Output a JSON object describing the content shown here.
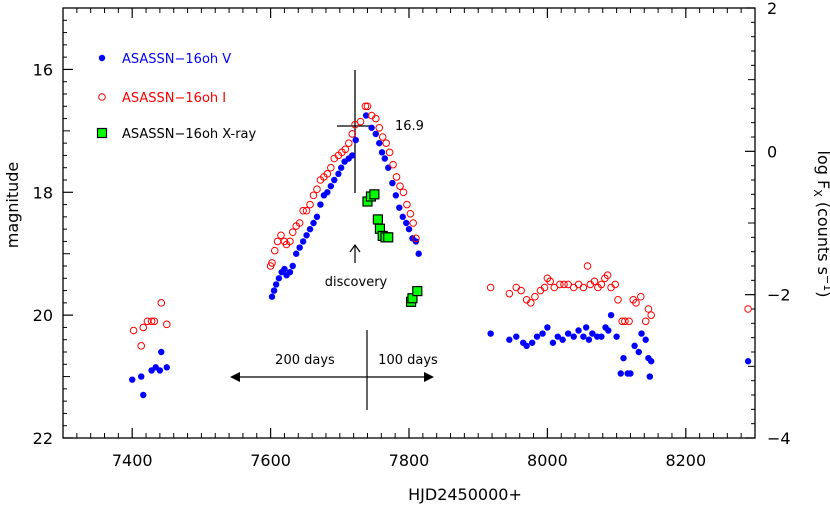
{
  "chart_data": {
    "type": "scatter",
    "xlabel": "HJD2450000+",
    "ylabel_left": "magnitude",
    "ylabel_right": "log F",
    "ylabel_right_sub": "X",
    "ylabel_right_units_pre": " (counts s",
    "ylabel_right_units_sup": "−1",
    "ylabel_right_units_post": ")",
    "xlim": [
      7300,
      8300
    ],
    "ylim_left": [
      22,
      15
    ],
    "ylim_right": [
      -4,
      2
    ],
    "x_ticks": [
      7400,
      7600,
      7800,
      8000,
      8200
    ],
    "y_ticks_left": [
      16,
      18,
      20,
      22
    ],
    "y_ticks_right": [
      2,
      0,
      -2,
      -4
    ],
    "x_tick_labels": [
      "7400",
      "7600",
      "7800",
      "8000",
      "8200"
    ],
    "y_tick_labels_left": [
      "16",
      "18",
      "20",
      "22"
    ],
    "y_tick_labels_right": [
      "2",
      "0",
      "−2",
      "−4"
    ],
    "legend_position": "top-left",
    "series": [
      {
        "name": "ASASSN−16oh V",
        "marker": "filled-circle",
        "color": "#0000ff",
        "axis": "left",
        "points": [
          [
            7400,
            21.05
          ],
          [
            7413,
            21.0
          ],
          [
            7416,
            21.3
          ],
          [
            7428,
            20.9
          ],
          [
            7434,
            20.85
          ],
          [
            7440,
            20.9
          ],
          [
            7442,
            20.6
          ],
          [
            7450,
            20.85
          ],
          [
            7602,
            19.7
          ],
          [
            7605,
            19.6
          ],
          [
            7608,
            19.5
          ],
          [
            7612,
            19.4
          ],
          [
            7616,
            19.3
          ],
          [
            7620,
            19.25
          ],
          [
            7623,
            19.35
          ],
          [
            7628,
            19.3
          ],
          [
            7632,
            19.2
          ],
          [
            7637,
            19.0
          ],
          [
            7642,
            18.9
          ],
          [
            7647,
            18.8
          ],
          [
            7652,
            18.7
          ],
          [
            7657,
            18.6
          ],
          [
            7662,
            18.5
          ],
          [
            7667,
            18.4
          ],
          [
            7672,
            18.2
          ],
          [
            7677,
            18.05
          ],
          [
            7682,
            18.0
          ],
          [
            7687,
            17.9
          ],
          [
            7692,
            17.8
          ],
          [
            7698,
            17.7
          ],
          [
            7702,
            17.6
          ],
          [
            7707,
            17.5
          ],
          [
            7713,
            17.45
          ],
          [
            7718,
            17.4
          ],
          [
            7723,
            17.15
          ],
          [
            7738,
            16.75
          ],
          [
            7746,
            16.95
          ],
          [
            7752,
            17.05
          ],
          [
            7757,
            17.2
          ],
          [
            7761,
            17.35
          ],
          [
            7765,
            17.45
          ],
          [
            7770,
            17.6
          ],
          [
            7776,
            17.85
          ],
          [
            7781,
            18.05
          ],
          [
            7786,
            18.25
          ],
          [
            7791,
            18.4
          ],
          [
            7796,
            18.5
          ],
          [
            7800,
            18.6
          ],
          [
            7805,
            18.75
          ],
          [
            7810,
            18.8
          ],
          [
            7814,
            19.0
          ],
          [
            7918,
            20.3
          ],
          [
            7945,
            20.4
          ],
          [
            7955,
            20.35
          ],
          [
            7965,
            20.45
          ],
          [
            7970,
            20.5
          ],
          [
            7978,
            20.45
          ],
          [
            7985,
            20.35
          ],
          [
            7993,
            20.3
          ],
          [
            8000,
            20.2
          ],
          [
            8008,
            20.45
          ],
          [
            8015,
            20.35
          ],
          [
            8022,
            20.4
          ],
          [
            8030,
            20.3
          ],
          [
            8038,
            20.35
          ],
          [
            8045,
            20.25
          ],
          [
            8052,
            20.35
          ],
          [
            8056,
            20.2
          ],
          [
            8060,
            20.4
          ],
          [
            8065,
            20.3
          ],
          [
            8072,
            20.35
          ],
          [
            8078,
            20.35
          ],
          [
            8084,
            20.2
          ],
          [
            8088,
            20.25
          ],
          [
            8092,
            20.0
          ],
          [
            8100,
            20.35
          ],
          [
            8106,
            20.95
          ],
          [
            8110,
            20.7
          ],
          [
            8116,
            20.95
          ],
          [
            8120,
            20.95
          ],
          [
            8126,
            20.5
          ],
          [
            8132,
            20.6
          ],
          [
            8136,
            20.3
          ],
          [
            8142,
            20.4
          ],
          [
            8146,
            20.7
          ],
          [
            8150,
            20.75
          ],
          [
            8148,
            21.0
          ],
          [
            8290,
            20.75
          ]
        ]
      },
      {
        "name": "ASASSN−16oh I",
        "marker": "open-circle",
        "color": "#ff0000",
        "axis": "left",
        "points": [
          [
            7402,
            20.25
          ],
          [
            7413,
            20.5
          ],
          [
            7416,
            20.2
          ],
          [
            7422,
            20.1
          ],
          [
            7428,
            20.1
          ],
          [
            7432,
            20.1
          ],
          [
            7442,
            19.8
          ],
          [
            7450,
            20.15
          ],
          [
            7600,
            19.2
          ],
          [
            7602,
            19.15
          ],
          [
            7606,
            18.95
          ],
          [
            7610,
            18.8
          ],
          [
            7615,
            18.7
          ],
          [
            7620,
            18.8
          ],
          [
            7623,
            18.85
          ],
          [
            7628,
            18.8
          ],
          [
            7632,
            18.65
          ],
          [
            7637,
            18.55
          ],
          [
            7642,
            18.5
          ],
          [
            7647,
            18.3
          ],
          [
            7652,
            18.3
          ],
          [
            7657,
            18.2
          ],
          [
            7662,
            18.05
          ],
          [
            7667,
            17.95
          ],
          [
            7672,
            17.8
          ],
          [
            7677,
            17.75
          ],
          [
            7682,
            17.7
          ],
          [
            7687,
            17.6
          ],
          [
            7692,
            17.45
          ],
          [
            7698,
            17.4
          ],
          [
            7703,
            17.35
          ],
          [
            7708,
            17.3
          ],
          [
            7713,
            17.2
          ],
          [
            7718,
            17.05
          ],
          [
            7722,
            16.9
          ],
          [
            7730,
            16.85
          ],
          [
            7737,
            16.6
          ],
          [
            7740,
            16.6
          ],
          [
            7746,
            16.75
          ],
          [
            7752,
            16.8
          ],
          [
            7757,
            16.95
          ],
          [
            7762,
            17.1
          ],
          [
            7767,
            17.2
          ],
          [
            7772,
            17.35
          ],
          [
            7777,
            17.55
          ],
          [
            7782,
            17.75
          ],
          [
            7787,
            17.9
          ],
          [
            7792,
            18.0
          ],
          [
            7797,
            18.2
          ],
          [
            7802,
            18.35
          ],
          [
            7806,
            18.5
          ],
          [
            7810,
            18.75
          ],
          [
            7918,
            19.55
          ],
          [
            7945,
            19.65
          ],
          [
            7955,
            19.55
          ],
          [
            7962,
            19.6
          ],
          [
            7970,
            19.75
          ],
          [
            7976,
            19.8
          ],
          [
            7982,
            19.7
          ],
          [
            7990,
            19.6
          ],
          [
            7996,
            19.55
          ],
          [
            8000,
            19.4
          ],
          [
            8004,
            19.45
          ],
          [
            8010,
            19.55
          ],
          [
            8018,
            19.5
          ],
          [
            8024,
            19.5
          ],
          [
            8030,
            19.5
          ],
          [
            8038,
            19.55
          ],
          [
            8045,
            19.5
          ],
          [
            8052,
            19.55
          ],
          [
            8058,
            19.2
          ],
          [
            8062,
            19.5
          ],
          [
            8068,
            19.45
          ],
          [
            8073,
            19.55
          ],
          [
            8078,
            19.5
          ],
          [
            8083,
            19.4
          ],
          [
            8087,
            19.35
          ],
          [
            8092,
            19.55
          ],
          [
            8098,
            19.5
          ],
          [
            8102,
            19.75
          ],
          [
            8108,
            20.1
          ],
          [
            8112,
            20.1
          ],
          [
            8118,
            20.1
          ],
          [
            8124,
            19.75
          ],
          [
            8128,
            19.8
          ],
          [
            8135,
            19.7
          ],
          [
            8142,
            20.1
          ],
          [
            8146,
            19.9
          ],
          [
            8150,
            20.0
          ],
          [
            8290,
            19.9
          ]
        ]
      },
      {
        "name": "ASASSN−16oh X-ray",
        "marker": "filled-square",
        "color": "#00ff00",
        "axis": "right",
        "points": [
          [
            7740,
            -0.7
          ],
          [
            7745,
            -0.63
          ],
          [
            7750,
            -0.6
          ],
          [
            7755,
            -0.95
          ],
          [
            7758,
            -1.08
          ],
          [
            7762,
            -1.18
          ],
          [
            7766,
            -1.2
          ],
          [
            7770,
            -1.2
          ],
          [
            7803,
            -2.1
          ],
          [
            7805,
            -2.05
          ],
          [
            7812,
            -1.95
          ]
        ]
      }
    ],
    "annotations": {
      "peak_label": "16.9",
      "discovery_label": "discovery",
      "left_span_label": "200 days",
      "right_span_label": "100 days"
    }
  }
}
